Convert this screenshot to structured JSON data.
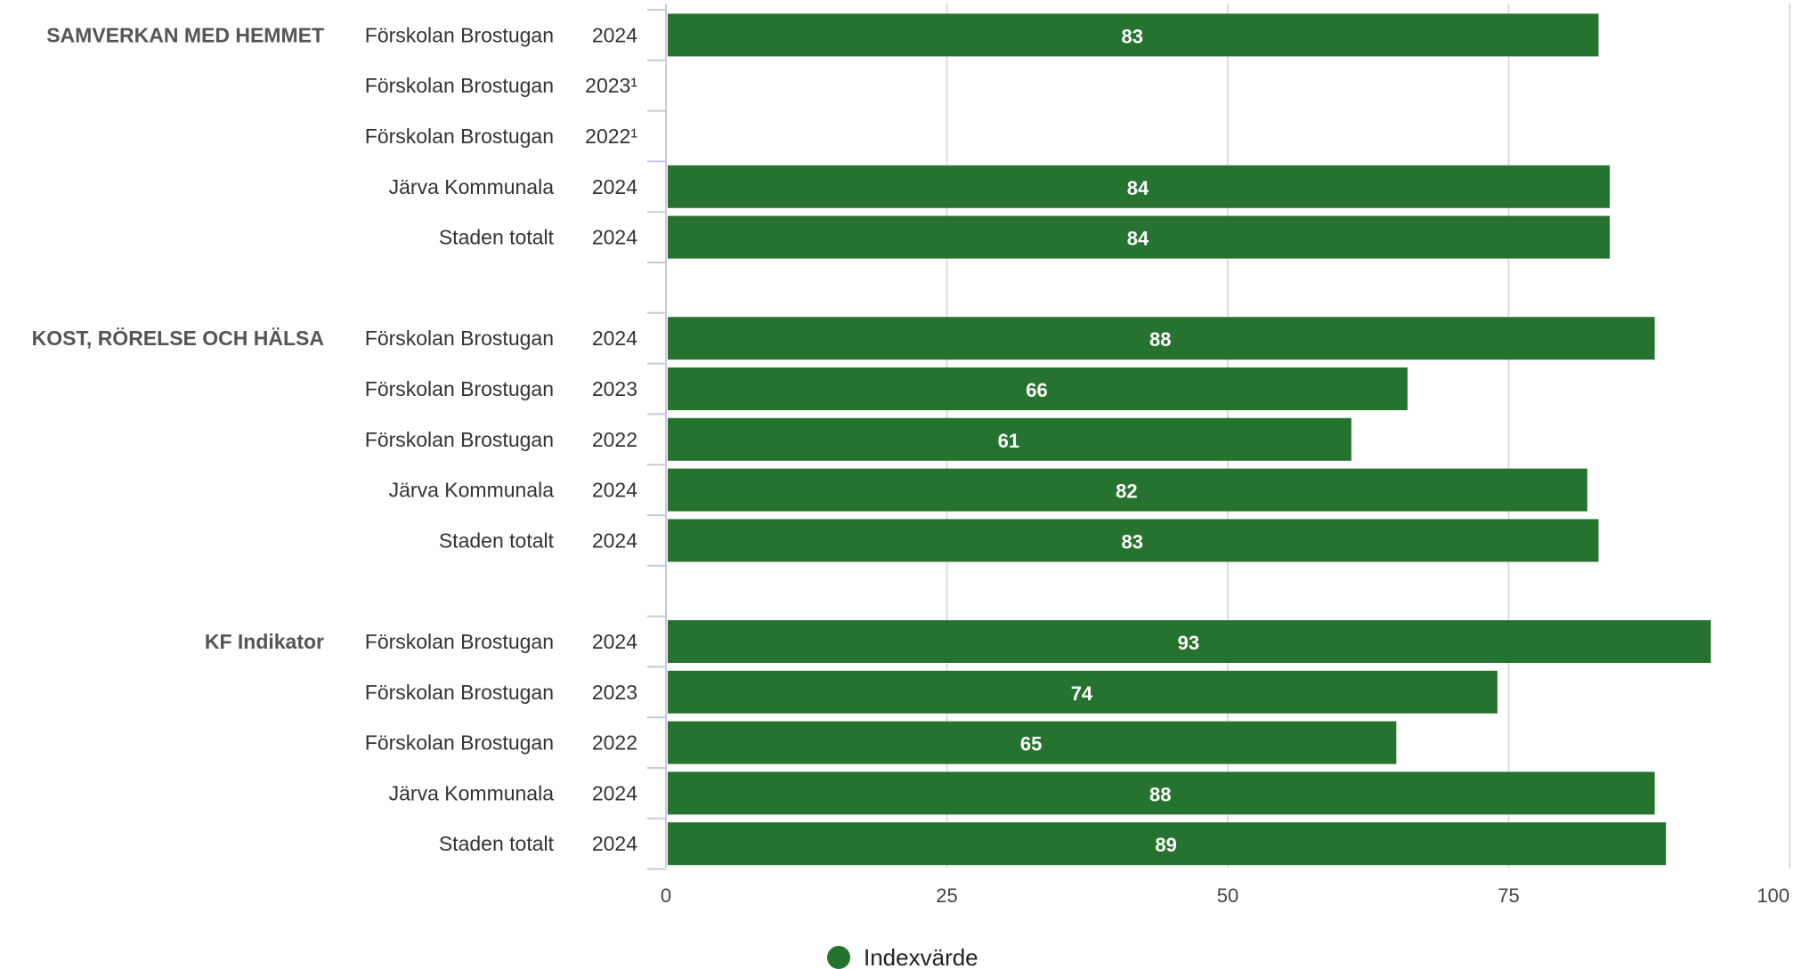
{
  "chart_data": {
    "type": "bar",
    "orientation": "horizontal",
    "xlim": [
      0,
      100
    ],
    "xticks": [
      0,
      25,
      50,
      75,
      100
    ],
    "grid": true,
    "legend": {
      "position": "bottom-center",
      "entries": [
        "Indexvärde"
      ]
    },
    "bar_color": "#267330",
    "series": [
      {
        "name": "Indexvärde"
      }
    ],
    "groups": [
      {
        "label": "SAMVERKAN MED HEMMET",
        "rows": [
          {
            "name": "Förskolan Brostugan",
            "year": "2024",
            "value": 83
          },
          {
            "name": "Förskolan Brostugan",
            "year": "2023¹",
            "value": null
          },
          {
            "name": "Förskolan Brostugan",
            "year": "2022¹",
            "value": null
          },
          {
            "name": "Järva Kommunala",
            "year": "2024",
            "value": 84
          },
          {
            "name": "Staden totalt",
            "year": "2024",
            "value": 84
          }
        ]
      },
      {
        "label": "KOST, RÖRELSE OCH HÄLSA",
        "rows": [
          {
            "name": "Förskolan Brostugan",
            "year": "2024",
            "value": 88
          },
          {
            "name": "Förskolan Brostugan",
            "year": "2023",
            "value": 66
          },
          {
            "name": "Förskolan Brostugan",
            "year": "2022",
            "value": 61
          },
          {
            "name": "Järva Kommunala",
            "year": "2024",
            "value": 82
          },
          {
            "name": "Staden totalt",
            "year": "2024",
            "value": 83
          }
        ]
      },
      {
        "label": "KF Indikator",
        "rows": [
          {
            "name": "Förskolan Brostugan",
            "year": "2024",
            "value": 93
          },
          {
            "name": "Förskolan Brostugan",
            "year": "2023",
            "value": 74
          },
          {
            "name": "Förskolan Brostugan",
            "year": "2022",
            "value": 65
          },
          {
            "name": "Järva Kommunala",
            "year": "2024",
            "value": 88
          },
          {
            "name": "Staden totalt",
            "year": "2024",
            "value": 89
          }
        ]
      }
    ]
  }
}
